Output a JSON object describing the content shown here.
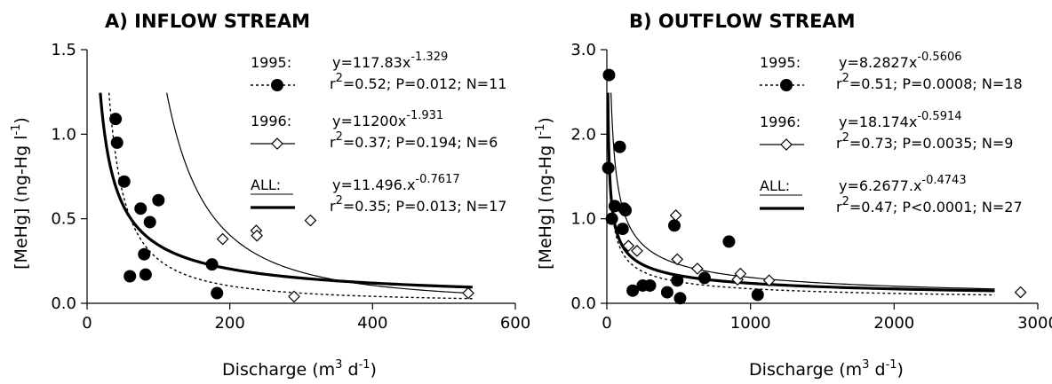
{
  "chart_data": [
    {
      "type": "scatter",
      "title": "A) INFLOW STREAM",
      "xlabel": {
        "pre": "Discharge (m",
        "sup1": "3",
        "mid": " d",
        "sup2": "-1",
        "post": ")"
      },
      "ylabel": {
        "pre": "[MeHg] (ng-Hg l",
        "sup": "-1",
        "post": ")"
      },
      "xlim": [
        0,
        600
      ],
      "ylim": [
        0,
        1.5
      ],
      "xticks": [
        "0",
        "200",
        "400",
        "600"
      ],
      "xtick_values": [
        0,
        200,
        400,
        600
      ],
      "yticks": [
        "0.0",
        "0.5",
        "1.0",
        "1.5"
      ],
      "ytick_values": [
        0,
        0.5,
        1.0,
        1.5
      ],
      "series": [
        {
          "name": "1995",
          "marker": "filled-circle",
          "line": "dotted",
          "equation": {
            "coef": 117.83,
            "exp": -1.329
          },
          "points": [
            [
              40,
              1.09
            ],
            [
              42,
              0.95
            ],
            [
              52,
              0.72
            ],
            [
              60,
              0.16
            ],
            [
              75,
              0.56
            ],
            [
              80,
              0.29
            ],
            [
              82,
              0.17
            ],
            [
              88,
              0.48
            ],
            [
              100,
              0.61
            ],
            [
              175,
              0.23
            ],
            [
              182,
              0.06
            ]
          ]
        },
        {
          "name": "1996",
          "marker": "open-diamond",
          "line": "thin",
          "equation": {
            "coef": 11200,
            "exp": -1.931
          },
          "points": [
            [
              190,
              0.38
            ],
            [
              237,
              0.43
            ],
            [
              238,
              0.4
            ],
            [
              290,
              0.04
            ],
            [
              313,
              0.49
            ],
            [
              534,
              0.06
            ]
          ]
        },
        {
          "name": "ALL",
          "marker": "none",
          "line": "thick",
          "equation": {
            "coef": 11.496,
            "exp": -0.7617
          },
          "points": []
        }
      ],
      "annotations": [
        {
          "label": "1995:",
          "eq": "y=117.83x",
          "exp": "-1.329",
          "stats_r": "r",
          "stats_sup": "2",
          "stats": "=0.52; P=0.012; N=11"
        },
        {
          "label": "1996:",
          "eq": "y=11200x",
          "exp": "-1.931",
          "stats_r": "r",
          "stats_sup": "2",
          "stats": "=0.37; P=0.194; N=6"
        },
        {
          "label": "ALL:",
          "eq": "y=11.496.x",
          "exp": "-0.7617",
          "stats_r": "r",
          "stats_sup": "2",
          "stats": "=0.35; P=0.013; N=17"
        }
      ]
    },
    {
      "type": "scatter",
      "title": "B) OUTFLOW STREAM",
      "xlabel": {
        "pre": "Discharge (m",
        "sup1": "3",
        "mid": " d",
        "sup2": "-1",
        "post": ")"
      },
      "ylabel": {
        "pre": "[MeHg] (ng-Hg l",
        "sup": "-1",
        "post": ")"
      },
      "xlim": [
        0,
        3000
      ],
      "ylim": [
        0,
        3.0
      ],
      "xticks": [
        "0",
        "1000",
        "2000",
        "3000"
      ],
      "xtick_values": [
        0,
        1000,
        2000,
        3000
      ],
      "yticks": [
        "0.0",
        "1.0",
        "2.0",
        "3.0"
      ],
      "ytick_values": [
        0,
        1.0,
        2.0,
        3.0
      ],
      "series": [
        {
          "name": "1995",
          "marker": "filled-circle",
          "line": "dotted",
          "equation": {
            "coef": 8.2827,
            "exp": -0.5606
          },
          "points": [
            [
              15,
              2.7
            ],
            [
              10,
              1.6
            ],
            [
              35,
              1.0
            ],
            [
              55,
              1.15
            ],
            [
              90,
              1.85
            ],
            [
              110,
              0.88
            ],
            [
              130,
              1.1
            ],
            [
              180,
              0.15
            ],
            [
              250,
              0.21
            ],
            [
              300,
              0.21
            ],
            [
              420,
              0.13
            ],
            [
              470,
              0.92
            ],
            [
              490,
              0.27
            ],
            [
              510,
              0.06
            ],
            [
              680,
              0.3
            ],
            [
              850,
              0.73
            ],
            [
              1050,
              0.1
            ],
            [
              120,
              1.12
            ]
          ]
        },
        {
          "name": "1996",
          "marker": "open-diamond",
          "line": "thin",
          "equation": {
            "coef": 18.174,
            "exp": -0.5914
          },
          "points": [
            [
              150,
              0.68
            ],
            [
              210,
              0.62
            ],
            [
              480,
              1.04
            ],
            [
              490,
              0.52
            ],
            [
              630,
              0.41
            ],
            [
              910,
              0.28
            ],
            [
              930,
              0.35
            ],
            [
              1130,
              0.27
            ],
            [
              2880,
              0.13
            ]
          ]
        },
        {
          "name": "ALL",
          "marker": "none",
          "line": "thick",
          "equation": {
            "coef": 6.2677,
            "exp": -0.4743
          },
          "points": []
        }
      ],
      "annotations": [
        {
          "label": "1995:",
          "eq": "y=8.2827x",
          "exp": "-0.5606",
          "stats_r": "r",
          "stats_sup": "2",
          "stats": "=0.51; P=0.0008; N=18"
        },
        {
          "label": "1996:",
          "eq": "y=18.174x",
          "exp": "-0.5914",
          "stats_r": "r",
          "stats_sup": "2",
          "stats": "=0.73; P=0.0035; N=9"
        },
        {
          "label": "ALL:",
          "eq": "y=6.2677.x",
          "exp": "-0.4743",
          "stats_r": "r",
          "stats_sup": "2",
          "stats": "=0.47; P<0.0001; N=27"
        }
      ]
    }
  ]
}
